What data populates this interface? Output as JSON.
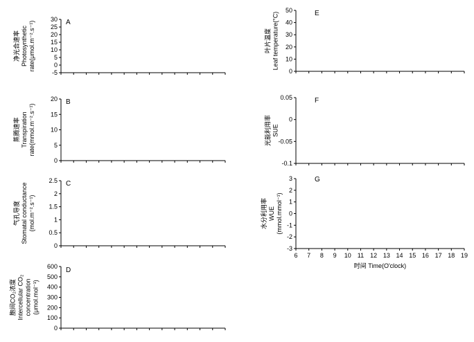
{
  "chart_data": [
    {
      "type": "line",
      "panel": "A",
      "ylabel": [
        "净光合速率",
        "Photosynthetic",
        "rate(μmol.m⁻².s⁻¹)"
      ],
      "ylim": [
        -5,
        30
      ],
      "yticks": [
        "-5",
        "0",
        "5",
        "10",
        "15",
        "20",
        "25",
        "30"
      ],
      "x": [],
      "series": []
    },
    {
      "type": "line",
      "panel": "B",
      "ylabel": [
        "蒸腾速率",
        "Transpiration",
        "rate(mmol.m⁻².s⁻¹)"
      ],
      "ylim": [
        0,
        20
      ],
      "yticks": [
        "0",
        "5",
        "10",
        "15",
        "20"
      ],
      "x": [],
      "series": []
    },
    {
      "type": "line",
      "panel": "C",
      "ylabel": [
        "气孔导度",
        "Stomatal conductance",
        "(mol.m⁻².s⁻¹)"
      ],
      "ylim": [
        0,
        2.5
      ],
      "yticks": [
        "0",
        "0.5",
        "1",
        "1.5",
        "2",
        "2.5"
      ],
      "x": [],
      "series": []
    },
    {
      "type": "line",
      "panel": "D",
      "ylabel": [
        "胞间CO₂浓度",
        "Intercellular CO₂",
        "concentration",
        "(μmol.mol⁻¹)"
      ],
      "ylim": [
        0,
        600
      ],
      "yticks": [
        "0",
        "100",
        "200",
        "300",
        "400",
        "500",
        "600"
      ],
      "x": [],
      "series": []
    },
    {
      "type": "line",
      "panel": "E",
      "ylabel": [
        "叶片温度",
        "Leaf temperature(°C)"
      ],
      "ylim": [
        0,
        50
      ],
      "yticks": [
        "0",
        "10",
        "20",
        "30",
        "40",
        "50"
      ],
      "x": [],
      "series": []
    },
    {
      "type": "line",
      "panel": "F",
      "ylabel": [
        "光能利用率",
        "SUE"
      ],
      "ylim": [
        -0.1,
        0.05
      ],
      "yticks": [
        "-0.1",
        "-0.05",
        "0",
        "0.05"
      ],
      "x": [],
      "series": []
    },
    {
      "type": "line",
      "panel": "G",
      "ylabel": [
        "水分利用率",
        "WUE",
        "(mmol.mmol⁻¹)"
      ],
      "ylim": [
        -3,
        3
      ],
      "yticks": [
        "-3",
        "-2",
        "-1",
        "0",
        "1",
        "2",
        "3"
      ],
      "xticks": [
        "6",
        "7",
        "8",
        "9",
        "10",
        "11",
        "12",
        "13",
        "14",
        "15",
        "16",
        "17",
        "18",
        "19"
      ],
      "xlabel": "时间 Time(O'clock)",
      "x": [],
      "series": []
    }
  ]
}
